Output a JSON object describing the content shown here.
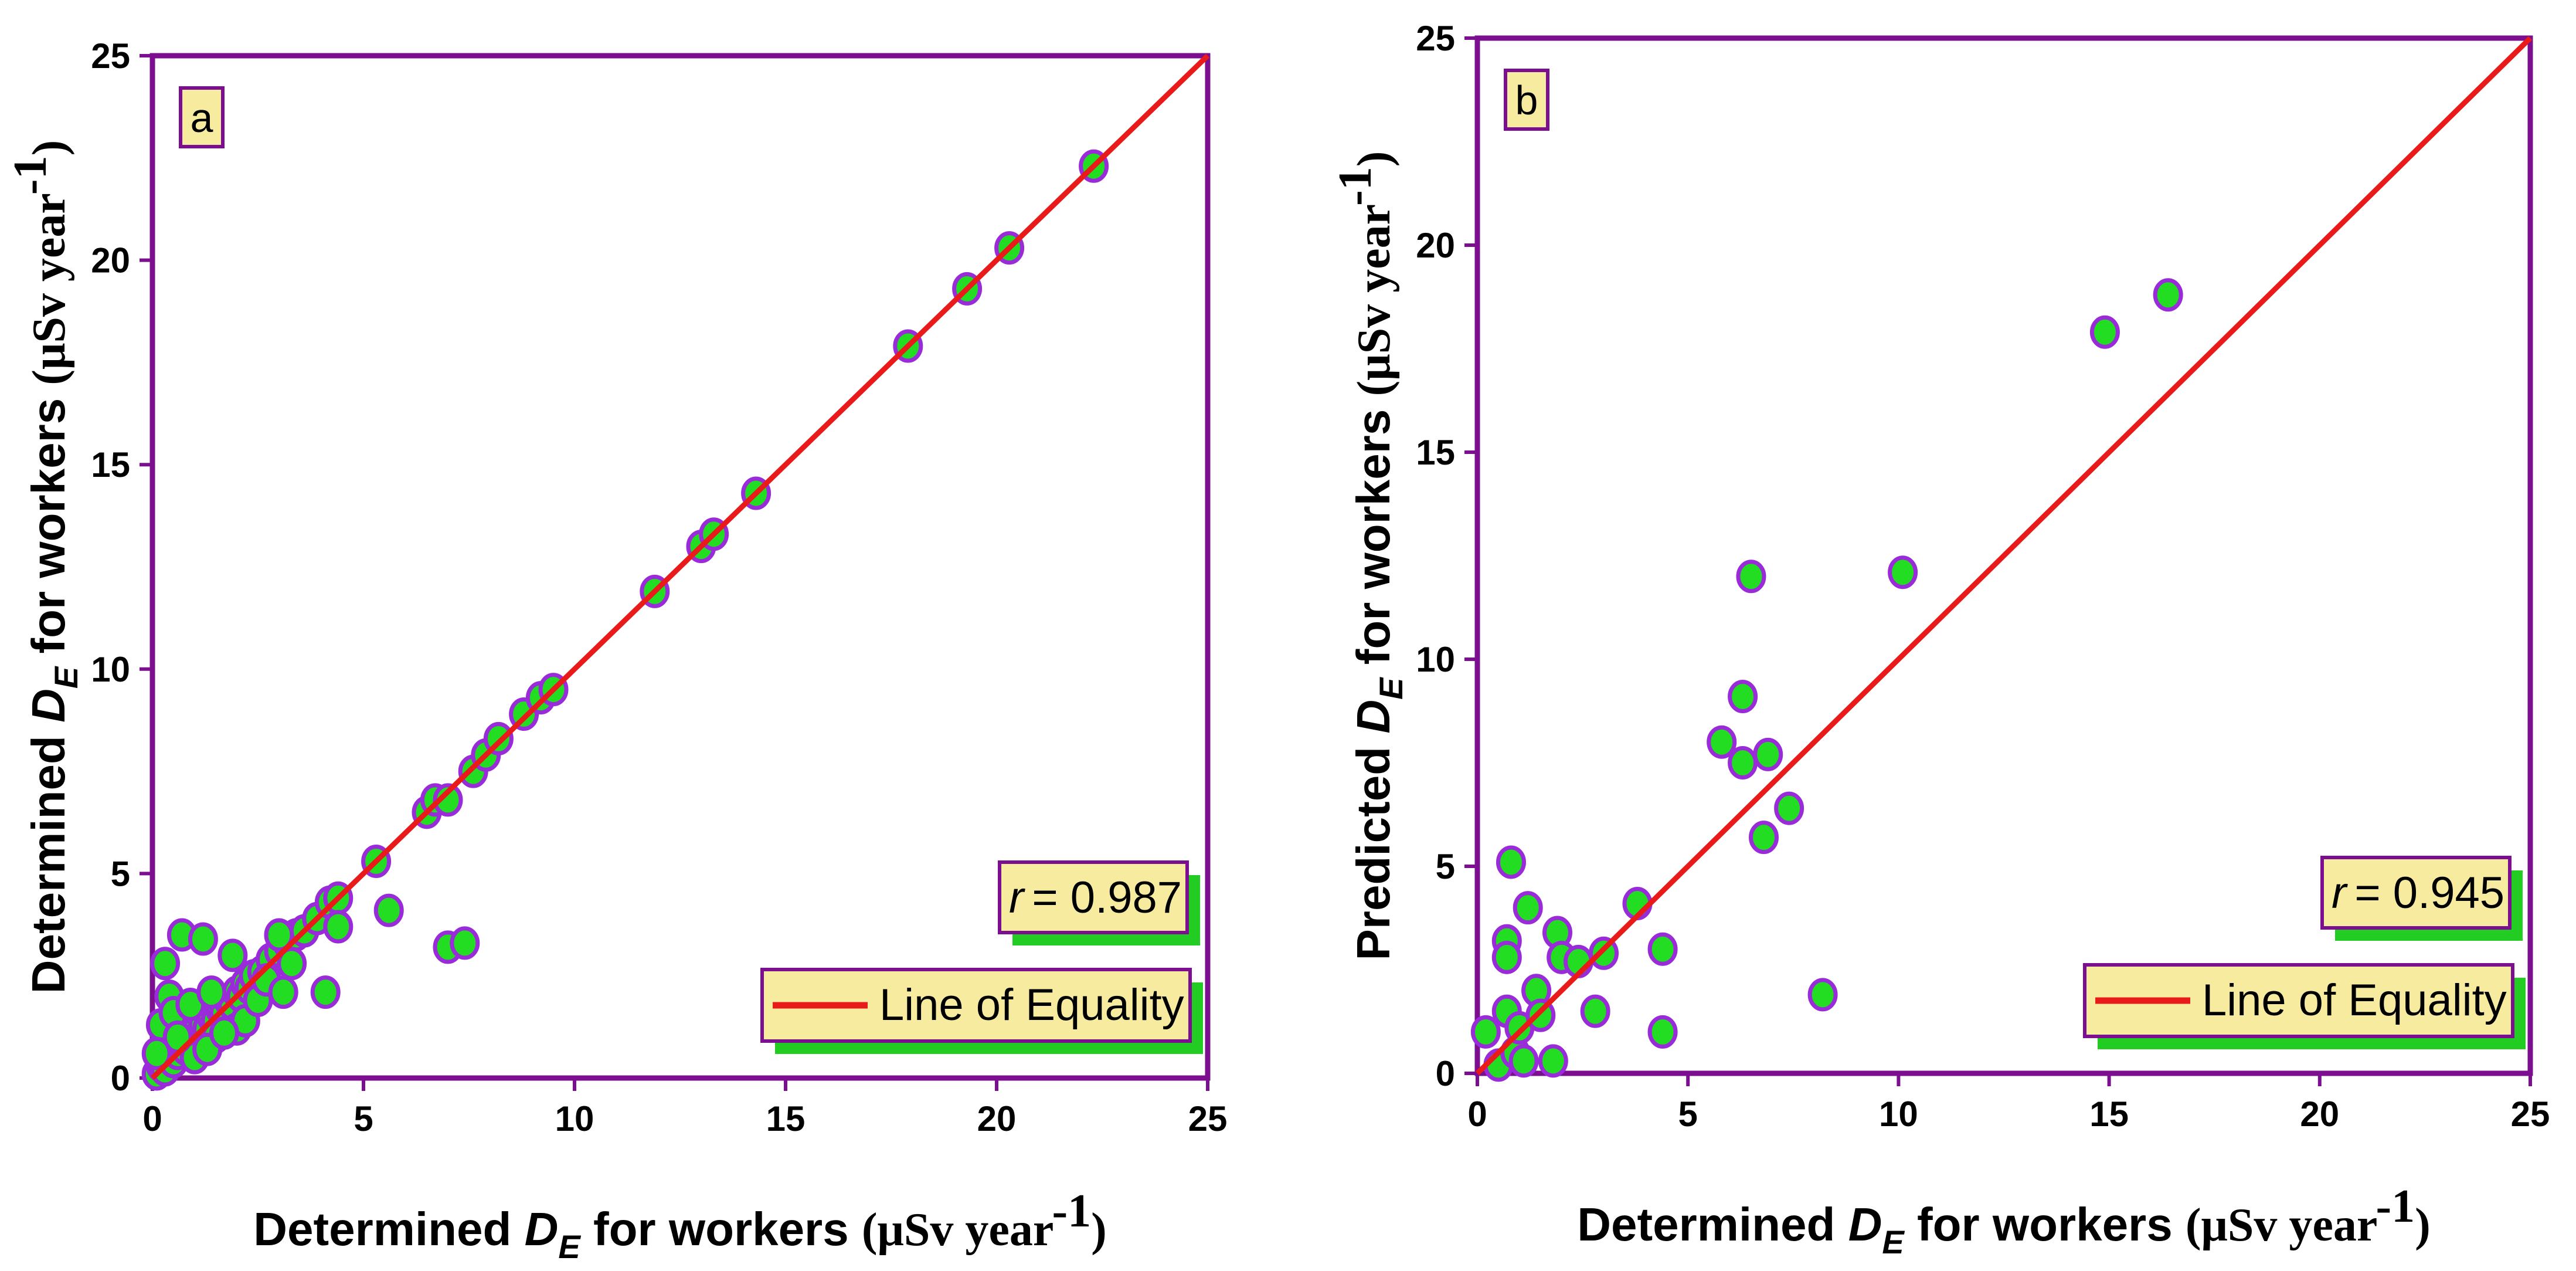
{
  "chart_data": [
    {
      "type": "scatter",
      "panel_label": "a",
      "xlabel": {
        "prefix": "Determined ",
        "sym": "D",
        "sub": "E",
        "suffix": " for workers ",
        "unit": "(μSv year",
        "exp": "-1",
        "close": ")"
      },
      "ylabel": {
        "prefix": "Determined ",
        "sym": "D",
        "sub": "E",
        "suffix": " for workers ",
        "unit": "(μSv year",
        "exp": "-1",
        "close": ")"
      },
      "xlim": [
        0,
        25
      ],
      "ylim": [
        0,
        25
      ],
      "xticks": [
        0,
        5,
        10,
        15,
        20,
        25
      ],
      "yticks": [
        0,
        5,
        10,
        15,
        20,
        25
      ],
      "r_label": "r",
      "r_value": "= 0.987",
      "legend_label": "Line of Equality",
      "equality_line": [
        [
          0,
          0
        ],
        [
          25,
          25
        ]
      ],
      "colors": {
        "frame": "#7B0F8F",
        "marker_fill": "#22DD22",
        "marker_edge": "#9A2BD9",
        "line": "#E81A1A",
        "box_fill": "#F7EBA0",
        "shadow": "#22CC22"
      },
      "points": [
        [
          0.1,
          0.1
        ],
        [
          0.2,
          0.3
        ],
        [
          0.3,
          0.2
        ],
        [
          0.4,
          0.5
        ],
        [
          0.5,
          0.4
        ],
        [
          0.6,
          0.6
        ],
        [
          0.7,
          0.8
        ],
        [
          0.8,
          0.7
        ],
        [
          0.9,
          0.9
        ],
        [
          1.0,
          1.1
        ],
        [
          1.1,
          1.0
        ],
        [
          1.2,
          1.3
        ],
        [
          1.3,
          1.2
        ],
        [
          1.4,
          1.5
        ],
        [
          1.5,
          1.4
        ],
        [
          1.6,
          1.7
        ],
        [
          1.7,
          1.6
        ],
        [
          1.8,
          1.9
        ],
        [
          1.9,
          1.8
        ],
        [
          2.0,
          2.1
        ],
        [
          2.1,
          2.0
        ],
        [
          2.2,
          2.3
        ],
        [
          2.3,
          2.2
        ],
        [
          2.4,
          2.5
        ],
        [
          2.6,
          2.6
        ],
        [
          2.8,
          2.9
        ],
        [
          3.0,
          3.1
        ],
        [
          3.2,
          3.3
        ],
        [
          3.4,
          3.5
        ],
        [
          3.6,
          3.6
        ],
        [
          3.9,
          3.9
        ],
        [
          4.2,
          4.3
        ],
        [
          4.4,
          4.4
        ],
        [
          0.2,
          1.3
        ],
        [
          0.3,
          2.8
        ],
        [
          0.4,
          2.0
        ],
        [
          0.5,
          1.6
        ],
        [
          0.7,
          3.5
        ],
        [
          0.9,
          1.8
        ],
        [
          1.2,
          3.4
        ],
        [
          1.4,
          2.1
        ],
        [
          1.5,
          1.0
        ],
        [
          1.9,
          3.0
        ],
        [
          2.0,
          1.2
        ],
        [
          2.2,
          1.4
        ],
        [
          2.5,
          1.9
        ],
        [
          2.7,
          2.4
        ],
        [
          3.1,
          2.1
        ],
        [
          3.3,
          2.8
        ],
        [
          4.1,
          2.1
        ],
        [
          4.4,
          3.7
        ],
        [
          3.0,
          3.5
        ],
        [
          1.0,
          0.5
        ],
        [
          1.3,
          0.7
        ],
        [
          1.7,
          1.1
        ],
        [
          0.6,
          1.0
        ],
        [
          0.1,
          0.6
        ],
        [
          5.3,
          5.3
        ],
        [
          5.6,
          4.1
        ],
        [
          6.5,
          6.5
        ],
        [
          6.7,
          6.8
        ],
        [
          7.0,
          6.8
        ],
        [
          7.0,
          3.2
        ],
        [
          7.4,
          3.3
        ],
        [
          7.6,
          7.5
        ],
        [
          7.9,
          7.9
        ],
        [
          8.2,
          8.3
        ],
        [
          8.8,
          8.9
        ],
        [
          9.2,
          9.3
        ],
        [
          9.5,
          9.5
        ],
        [
          11.9,
          11.9
        ],
        [
          13.0,
          13.0
        ],
        [
          13.3,
          13.3
        ],
        [
          14.3,
          14.3
        ],
        [
          17.9,
          17.9
        ],
        [
          19.3,
          19.3
        ],
        [
          20.3,
          20.3
        ],
        [
          22.3,
          22.3
        ]
      ]
    },
    {
      "type": "scatter",
      "panel_label": "b",
      "xlabel": {
        "prefix": "Determined ",
        "sym": "D",
        "sub": "E",
        "suffix": " for workers ",
        "unit": "(μSv year",
        "exp": "-1",
        "close": ")"
      },
      "ylabel": {
        "prefix": "Predicted ",
        "sym": "D",
        "sub": "E",
        "suffix": " for workers ",
        "unit": "(μSv year",
        "exp": "-1",
        "close": ")"
      },
      "xlim": [
        0,
        25
      ],
      "ylim": [
        0,
        25
      ],
      "xticks": [
        0,
        5,
        10,
        15,
        20,
        25
      ],
      "yticks": [
        0,
        5,
        10,
        15,
        20,
        25
      ],
      "r_label": "r",
      "r_value": "= 0.945",
      "legend_label": "Line of Equality",
      "equality_line": [
        [
          0,
          0
        ],
        [
          25,
          25
        ]
      ],
      "colors": {
        "frame": "#7B0F8F",
        "marker_fill": "#22DD22",
        "marker_edge": "#9A2BD9",
        "line": "#E81A1A",
        "box_fill": "#F7EBA0",
        "shadow": "#22CC22"
      },
      "points": [
        [
          0.2,
          1.0
        ],
        [
          0.5,
          0.2
        ],
        [
          0.7,
          3.2
        ],
        [
          0.7,
          2.8
        ],
        [
          0.7,
          1.5
        ],
        [
          0.8,
          5.1
        ],
        [
          0.9,
          0.5
        ],
        [
          1.0,
          1.1
        ],
        [
          1.1,
          0.3
        ],
        [
          1.2,
          4.0
        ],
        [
          1.4,
          2.0
        ],
        [
          1.5,
          1.4
        ],
        [
          1.8,
          0.3
        ],
        [
          1.9,
          3.4
        ],
        [
          2.0,
          2.8
        ],
        [
          2.4,
          2.7
        ],
        [
          2.8,
          1.5
        ],
        [
          3.0,
          2.9
        ],
        [
          3.8,
          4.1
        ],
        [
          4.4,
          3.0
        ],
        [
          4.4,
          1.0
        ],
        [
          5.8,
          8.0
        ],
        [
          6.3,
          9.1
        ],
        [
          6.3,
          7.5
        ],
        [
          6.5,
          12.0
        ],
        [
          6.8,
          5.7
        ],
        [
          6.9,
          7.7
        ],
        [
          7.4,
          6.4
        ],
        [
          8.2,
          1.9
        ],
        [
          10.1,
          12.1
        ],
        [
          14.9,
          17.9
        ],
        [
          16.4,
          18.8
        ]
      ]
    }
  ]
}
